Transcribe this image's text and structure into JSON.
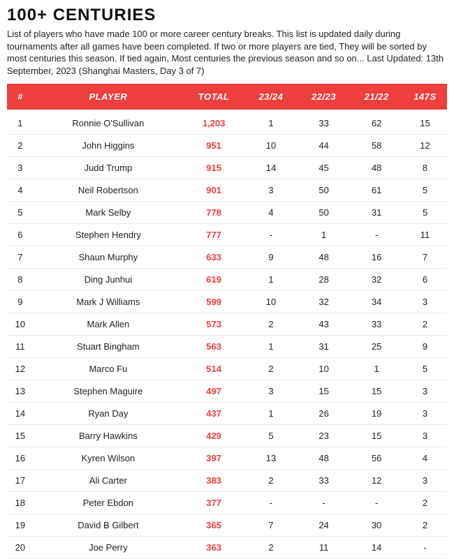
{
  "header": {
    "title": "100+ Centuries",
    "description": "List of players who have made 100 or more career century breaks. This list is updated daily during tournaments after all games have been completed. If two or more players are tied, They will be sorted by most centuries this season. If tied again, Most centuries the previous season and so on... Last Updated: 13th September, 2023 (Shanghai Masters, Day 3 of 7)"
  },
  "colors": {
    "header_bg": "#ee3e3e",
    "header_text": "#ffffff",
    "total_text": "#ee3e3e",
    "body_text": "#222222",
    "row_border": "#e8e8e8",
    "page_bg": "#ffffff"
  },
  "typography": {
    "title_fontsize": 24,
    "desc_fontsize": 13,
    "header_fontsize": 13,
    "cell_fontsize": 13
  },
  "table": {
    "columns": [
      "#",
      "Player",
      "Total",
      "23/24",
      "22/23",
      "21/22",
      "147s"
    ],
    "column_widths_pct": [
      6,
      34,
      14,
      12,
      12,
      12,
      10
    ],
    "rows": [
      {
        "rank": "1",
        "player": "Ronnie O'Sullivan",
        "total": "1,203",
        "s1": "1",
        "s2": "33",
        "s3": "62",
        "s147": "15"
      },
      {
        "rank": "2",
        "player": "John Higgins",
        "total": "951",
        "s1": "10",
        "s2": "44",
        "s3": "58",
        "s147": "12"
      },
      {
        "rank": "3",
        "player": "Judd Trump",
        "total": "915",
        "s1": "14",
        "s2": "45",
        "s3": "48",
        "s147": "8"
      },
      {
        "rank": "4",
        "player": "Neil Robertson",
        "total": "901",
        "s1": "3",
        "s2": "50",
        "s3": "61",
        "s147": "5"
      },
      {
        "rank": "5",
        "player": "Mark Selby",
        "total": "778",
        "s1": "4",
        "s2": "50",
        "s3": "31",
        "s147": "5"
      },
      {
        "rank": "6",
        "player": "Stephen Hendry",
        "total": "777",
        "s1": "-",
        "s2": "1",
        "s3": "-",
        "s147": "11"
      },
      {
        "rank": "7",
        "player": "Shaun Murphy",
        "total": "633",
        "s1": "9",
        "s2": "48",
        "s3": "16",
        "s147": "7"
      },
      {
        "rank": "8",
        "player": "Ding Junhui",
        "total": "619",
        "s1": "1",
        "s2": "28",
        "s3": "32",
        "s147": "6"
      },
      {
        "rank": "9",
        "player": "Mark J Williams",
        "total": "599",
        "s1": "10",
        "s2": "32",
        "s3": "34",
        "s147": "3"
      },
      {
        "rank": "10",
        "player": "Mark Allen",
        "total": "573",
        "s1": "2",
        "s2": "43",
        "s3": "33",
        "s147": "2"
      },
      {
        "rank": "11",
        "player": "Stuart Bingham",
        "total": "563",
        "s1": "1",
        "s2": "31",
        "s3": "25",
        "s147": "9"
      },
      {
        "rank": "12",
        "player": "Marco Fu",
        "total": "514",
        "s1": "2",
        "s2": "10",
        "s3": "1",
        "s147": "5"
      },
      {
        "rank": "13",
        "player": "Stephen Maguire",
        "total": "497",
        "s1": "3",
        "s2": "15",
        "s3": "15",
        "s147": "3"
      },
      {
        "rank": "14",
        "player": "Ryan Day",
        "total": "437",
        "s1": "1",
        "s2": "26",
        "s3": "19",
        "s147": "3"
      },
      {
        "rank": "15",
        "player": "Barry Hawkins",
        "total": "429",
        "s1": "5",
        "s2": "23",
        "s3": "15",
        "s147": "3"
      },
      {
        "rank": "16",
        "player": "Kyren Wilson",
        "total": "397",
        "s1": "13",
        "s2": "48",
        "s3": "56",
        "s147": "4"
      },
      {
        "rank": "17",
        "player": "Ali Carter",
        "total": "383",
        "s1": "2",
        "s2": "33",
        "s3": "12",
        "s147": "3"
      },
      {
        "rank": "18",
        "player": "Peter Ebdon",
        "total": "377",
        "s1": "-",
        "s2": "-",
        "s3": "-",
        "s147": "2"
      },
      {
        "rank": "19",
        "player": "David B Gilbert",
        "total": "365",
        "s1": "7",
        "s2": "24",
        "s3": "30",
        "s147": "2"
      },
      {
        "rank": "20",
        "player": "Joe Perry",
        "total": "363",
        "s1": "2",
        "s2": "11",
        "s3": "14",
        "s147": "-"
      }
    ]
  }
}
